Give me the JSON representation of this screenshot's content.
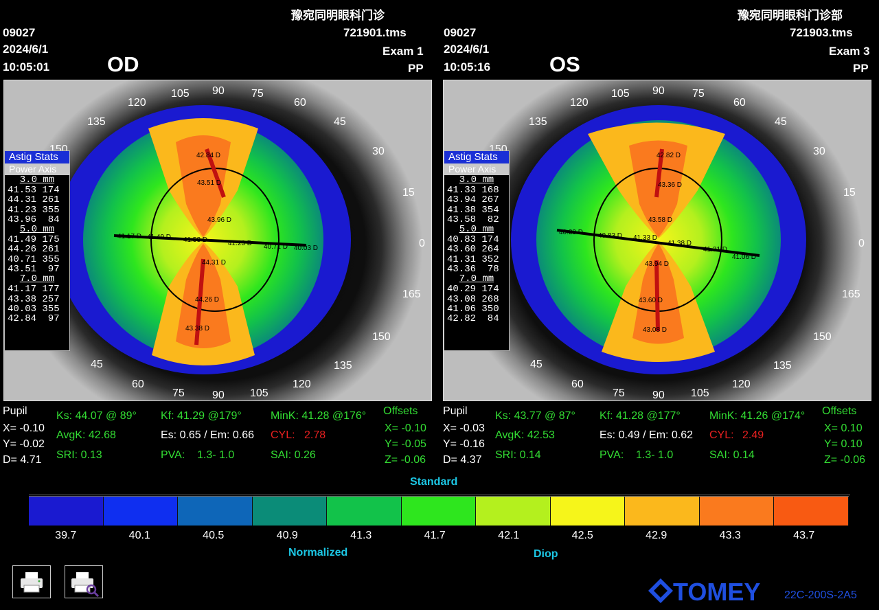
{
  "app": {
    "brand": "TOMEY",
    "model": "22C-200S-2A5"
  },
  "right_eye": {
    "clinic": "豫宛同明眼科门诊",
    "patient_id": "09027",
    "date": "2024/6/1",
    "time": "10:05:01",
    "file": "721901.tms",
    "exam": "Exam 1",
    "mode": "PP",
    "eye": "OD",
    "astig_stats": {
      "title": "Astig Stats",
      "header": "Power Axis",
      "zones": [
        {
          "label": "3.0 mm",
          "rows": [
            "41.53 174",
            "44.31 261",
            "41.23 355",
            "43.96  84"
          ]
        },
        {
          "label": "5.0 mm",
          "rows": [
            "41.49 175",
            "44.26 261",
            "40.71 355",
            "43.51  97"
          ]
        },
        {
          "label": "7.0 mm",
          "rows": [
            "41.17 177",
            "43.38 257",
            "40.03 355",
            "42.84  97"
          ]
        }
      ]
    },
    "map_values": [
      "42.84 D",
      "43.51 D",
      "43.96 D",
      "41.17 D",
      "41.49 D",
      "41.53 D",
      "41.23 D",
      "40.71 D",
      "40.03 D",
      "44.31 D",
      "44.26 D",
      "43.38 D"
    ],
    "axis_labels": [
      "90",
      "105",
      "120",
      "135",
      "150",
      "75",
      "60",
      "45",
      "30",
      "15",
      "0",
      "165",
      "150",
      "135",
      "120",
      "105",
      "90",
      "75",
      "60",
      "45"
    ],
    "pupil": {
      "title": "Pupil",
      "x": "X= -0.10",
      "y": "Y= -0.02",
      "d": "D=  4.71"
    },
    "ks": "Ks: 44.07 @ 89°",
    "kf": "Kf: 41.29 @179°",
    "mink": "MinK: 41.28 @176°",
    "avgk": "AvgK: 42.68",
    "es_em": "Es: 0.65 / Em: 0.66",
    "cyl_label": "CYL:",
    "cyl_value": "2.78",
    "sri": "SRI: 0.13",
    "pva_label": "PVA:",
    "pva_value": "1.3-  1.0",
    "sai": "SAI: 0.26",
    "offsets": {
      "title": "Offsets",
      "x": "X= -0.10",
      "y": "Y= -0.05",
      "z": "Z= -0.06"
    }
  },
  "left_eye": {
    "clinic": "豫宛同明眼科门诊部",
    "patient_id": "09027",
    "date": "2024/6/1",
    "time": "10:05:16",
    "file": "721903.tms",
    "exam": "Exam 3",
    "mode": "PP",
    "eye": "OS",
    "astig_stats": {
      "title": "Astig Stats",
      "header": "Power Axis",
      "zones": [
        {
          "label": "3.0 mm",
          "rows": [
            "41.33 168",
            "43.94 267",
            "41.38 354",
            "43.58  82"
          ]
        },
        {
          "label": "5.0 mm",
          "rows": [
            "40.83 174",
            "43.60 264",
            "41.31 352",
            "43.36  78"
          ]
        },
        {
          "label": "7.0 mm",
          "rows": [
            "40.29 174",
            "43.08 268",
            "41.06 350",
            "42.82  84"
          ]
        }
      ]
    },
    "map_values": [
      "42.82 D",
      "43.36 D",
      "43.58 D",
      "40.29 D",
      "40.83 D",
      "41.33 D",
      "41.38 D",
      "41.31 D",
      "41.06 D",
      "43.94 D",
      "43.60 D",
      "43.08 D"
    ],
    "axis_labels": [
      "90",
      "105",
      "120",
      "135",
      "150",
      "75",
      "60",
      "45",
      "30",
      "15",
      "0",
      "165",
      "150",
      "135",
      "120",
      "105",
      "90",
      "75",
      "60",
      "45"
    ],
    "pupil": {
      "title": "Pupil",
      "x": "X= -0.03",
      "y": "Y= -0.16",
      "d": "D=  4.37"
    },
    "ks": "Ks: 43.77 @ 87°",
    "kf": "Kf: 41.28 @177°",
    "mink": "MinK: 41.26 @174°",
    "avgk": "AvgK: 42.53",
    "es_em": "Es: 0.49 / Em: 0.62",
    "cyl_label": "CYL:",
    "cyl_value": "2.49",
    "sri": "SRI: 0.14",
    "pva_label": "PVA:",
    "pva_value": "1.3-  1.0",
    "sai": "SAI: 0.14",
    "offsets": {
      "title": "Offsets",
      "x": "X= 0.10",
      "y": "Y= 0.10",
      "z": "Z= -0.06"
    }
  },
  "scale": {
    "title": "Standard",
    "normalized": "Normalized",
    "unit": "Diop",
    "ticks": [
      "39.7",
      "40.1",
      "40.5",
      "40.9",
      "41.3",
      "41.7",
      "42.1",
      "42.5",
      "42.9",
      "43.3",
      "43.7"
    ],
    "colors": [
      "#1a1ad0",
      "#0f2ff0",
      "#0e66b8",
      "#0b8c78",
      "#12c24a",
      "#2ee61e",
      "#b4f01e",
      "#f6f51a",
      "#fbb81c",
      "#fa7a1e",
      "#f85a12"
    ]
  },
  "buttons": {
    "print": "print-icon",
    "preview": "print-preview-icon"
  }
}
